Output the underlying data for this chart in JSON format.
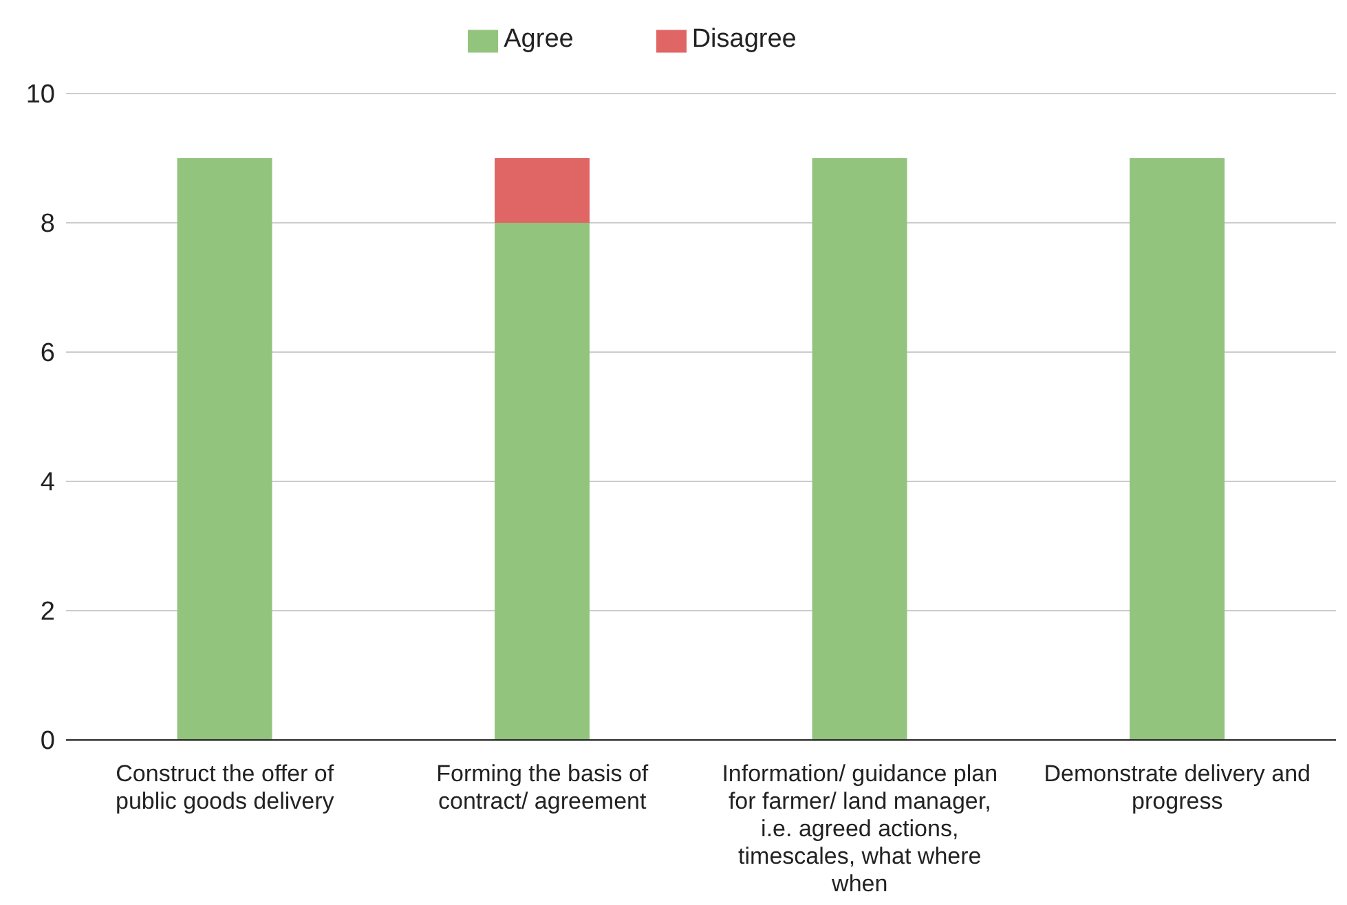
{
  "chart_data": {
    "type": "bar",
    "stacked": true,
    "categories": [
      "Construct the offer of public goods delivery",
      "Forming the basis of contract/ agreement",
      "Information/ guidance plan for farmer/ land manager, i.e. agreed actions, timescales, what where when",
      "Demonstrate delivery and progress"
    ],
    "series": [
      {
        "name": "Agree",
        "color": "#93c47d",
        "values": [
          9,
          8,
          9,
          9
        ]
      },
      {
        "name": "Disagree",
        "color": "#e06666",
        "values": [
          0,
          1,
          0,
          0
        ]
      }
    ],
    "ylim": [
      0,
      10
    ],
    "yticks": [
      0,
      2,
      4,
      6,
      8,
      10
    ],
    "grid": "y",
    "legend": "top"
  }
}
